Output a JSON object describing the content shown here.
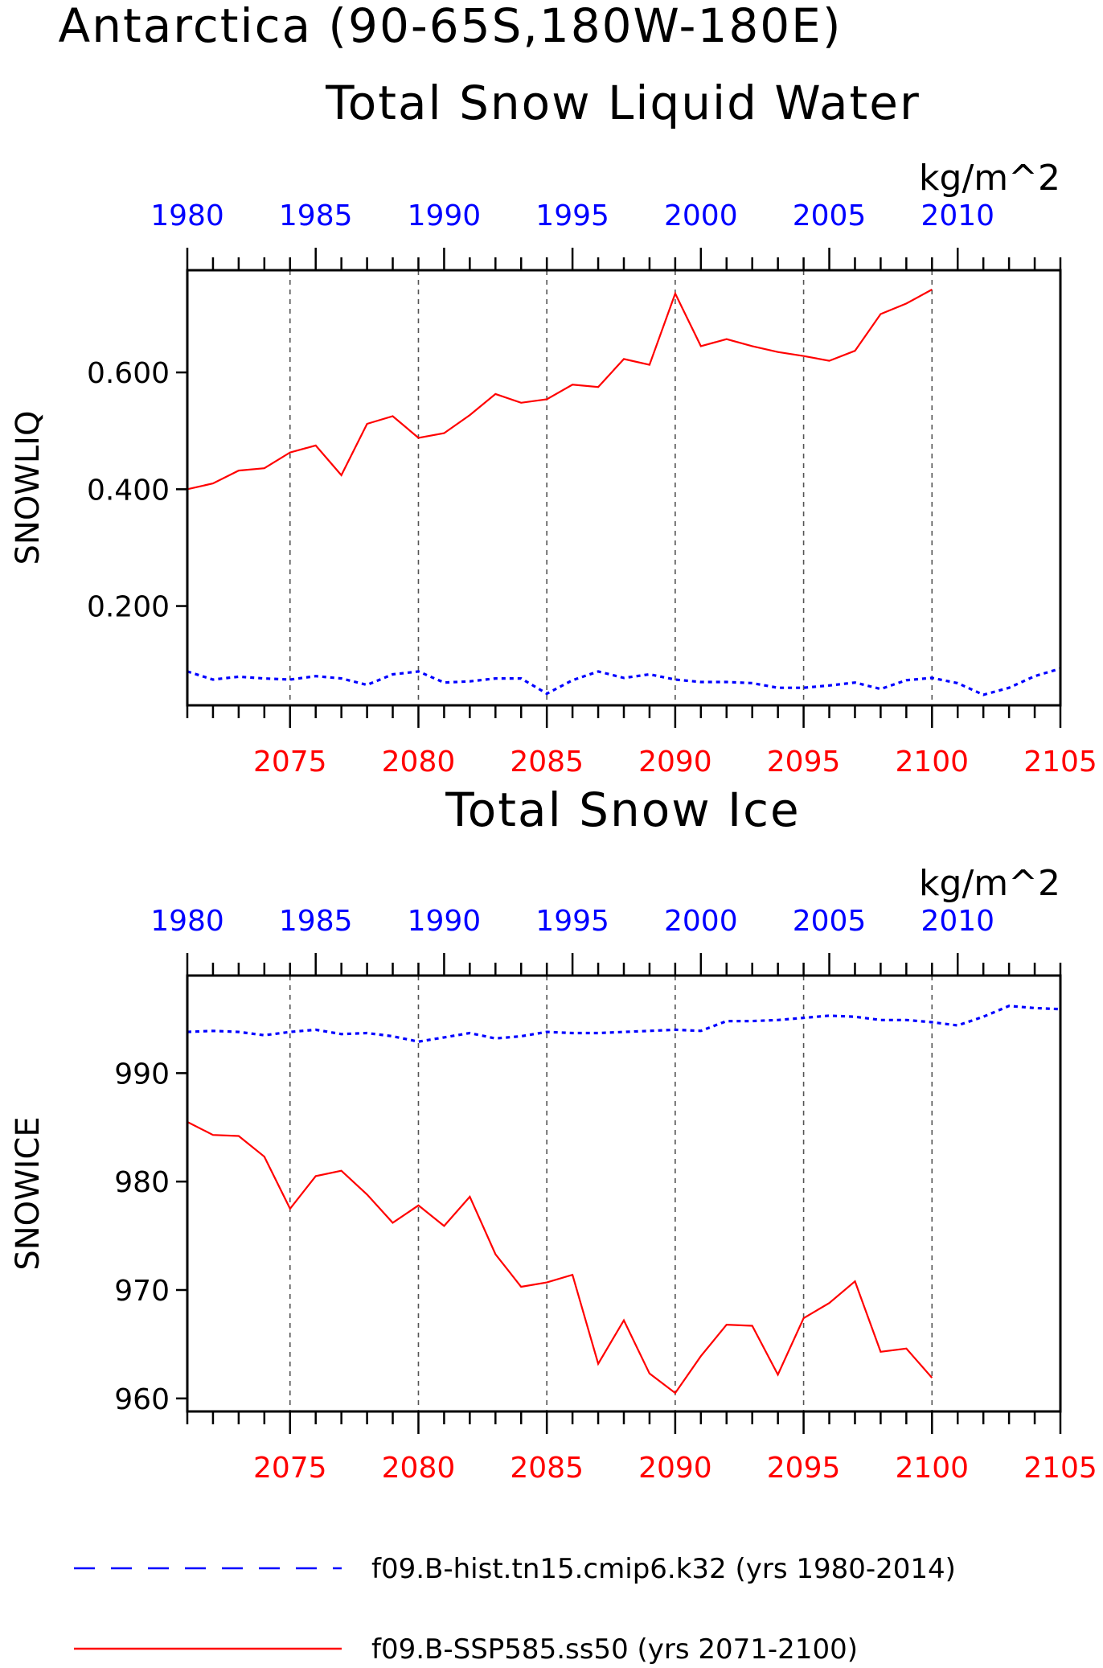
{
  "title_line1": "Antarctica (90-65S,180W-180E)",
  "legend": [
    {
      "label": "f09.B-hist.tn15.cmip6.k32 (yrs 1980-2014)",
      "color": "#0000ff",
      "style": "dashed"
    },
    {
      "label": "f09.B-SSP585.ss50 (yrs 2071-2100)",
      "color": "#ff0000",
      "style": "solid"
    }
  ],
  "chart_data": [
    {
      "type": "line",
      "title": "Total Snow Liquid Water",
      "ylabel": "SNOWLIQ",
      "units": "kg/m^2",
      "ylim": [
        0.03,
        0.775
      ],
      "y_ticks": [
        0.2,
        0.4,
        0.6
      ],
      "y_tick_labels": [
        "0.200",
        "0.400",
        "0.600"
      ],
      "top_axis": {
        "label_years": [
          1980,
          1985,
          1990,
          1995,
          2000,
          2005,
          2010
        ],
        "range": [
          1980,
          2014
        ]
      },
      "bottom_axis": {
        "label_years": [
          2075,
          2080,
          2085,
          2090,
          2095,
          2100,
          2105
        ],
        "range": [
          2071,
          2105
        ]
      },
      "series": [
        {
          "name": "f09.B-SSP585.ss50 (yrs 2071-2100)",
          "color": "#ff0000",
          "axis": "bottom",
          "x": [
            2071,
            2072,
            2073,
            2074,
            2075,
            2076,
            2077,
            2078,
            2079,
            2080,
            2081,
            2082,
            2083,
            2084,
            2085,
            2086,
            2087,
            2088,
            2089,
            2090,
            2091,
            2092,
            2093,
            2094,
            2095,
            2096,
            2097,
            2098,
            2099,
            2100
          ],
          "values": [
            0.4,
            0.41,
            0.432,
            0.436,
            0.463,
            0.475,
            0.424,
            0.512,
            0.525,
            0.488,
            0.496,
            0.527,
            0.563,
            0.548,
            0.554,
            0.579,
            0.575,
            0.623,
            0.613,
            0.735,
            0.645,
            0.657,
            0.645,
            0.635,
            0.628,
            0.62,
            0.637,
            0.7,
            0.718,
            0.742
          ]
        },
        {
          "name": "f09.B-hist.tn15.cmip6.k32 (yrs 1980-2014)",
          "color": "#0000ff",
          "axis": "top",
          "x": [
            1980,
            1981,
            1982,
            1983,
            1984,
            1985,
            1986,
            1987,
            1988,
            1989,
            1990,
            1991,
            1992,
            1993,
            1994,
            1995,
            1996,
            1997,
            1998,
            1999,
            2000,
            2001,
            2002,
            2003,
            2004,
            2005,
            2006,
            2007,
            2008,
            2009,
            2010,
            2011,
            2012,
            2013,
            2014
          ],
          "values": [
            0.088,
            0.074,
            0.079,
            0.076,
            0.074,
            0.08,
            0.076,
            0.065,
            0.083,
            0.088,
            0.069,
            0.071,
            0.076,
            0.076,
            0.05,
            0.073,
            0.088,
            0.077,
            0.083,
            0.074,
            0.07,
            0.07,
            0.068,
            0.06,
            0.06,
            0.064,
            0.069,
            0.058,
            0.073,
            0.077,
            0.068,
            0.048,
            0.06,
            0.08,
            0.093
          ]
        }
      ]
    },
    {
      "type": "line",
      "title": "Total Snow Ice",
      "ylabel": "SNOWICE",
      "units": "kg/m^2",
      "ylim": [
        958.8,
        999.0
      ],
      "y_ticks": [
        960,
        970,
        980,
        990
      ],
      "y_tick_labels": [
        "960",
        "970",
        "980",
        "990"
      ],
      "top_axis": {
        "label_years": [
          1980,
          1985,
          1990,
          1995,
          2000,
          2005,
          2010
        ],
        "range": [
          1980,
          2014
        ]
      },
      "bottom_axis": {
        "label_years": [
          2075,
          2080,
          2085,
          2090,
          2095,
          2100,
          2105
        ],
        "range": [
          2071,
          2105
        ]
      },
      "series": [
        {
          "name": "f09.B-SSP585.ss50 (yrs 2071-2100)",
          "color": "#ff0000",
          "axis": "bottom",
          "x": [
            2071,
            2072,
            2073,
            2074,
            2075,
            2076,
            2077,
            2078,
            2079,
            2080,
            2081,
            2082,
            2083,
            2084,
            2085,
            2086,
            2087,
            2088,
            2089,
            2090,
            2091,
            2092,
            2093,
            2094,
            2095,
            2096,
            2097,
            2098,
            2099,
            2100
          ],
          "values": [
            985.5,
            984.3,
            984.2,
            982.3,
            977.5,
            980.5,
            981.0,
            978.8,
            976.2,
            977.8,
            975.9,
            978.6,
            973.3,
            970.3,
            970.7,
            971.4,
            963.2,
            967.2,
            962.3,
            960.5,
            963.9,
            966.8,
            966.7,
            962.2,
            967.4,
            968.8,
            970.8,
            964.3,
            964.6,
            961.9
          ]
        },
        {
          "name": "f09.B-hist.tn15.cmip6.k32 (yrs 1980-2014)",
          "color": "#0000ff",
          "axis": "top",
          "x": [
            1980,
            1981,
            1982,
            1983,
            1984,
            1985,
            1986,
            1987,
            1988,
            1989,
            1990,
            1991,
            1992,
            1993,
            1994,
            1995,
            1996,
            1997,
            1998,
            1999,
            2000,
            2001,
            2002,
            2003,
            2004,
            2005,
            2006,
            2007,
            2008,
            2009,
            2010,
            2011,
            2012,
            2013,
            2014
          ],
          "values": [
            993.8,
            993.9,
            993.8,
            993.5,
            993.8,
            994.0,
            993.6,
            993.7,
            993.4,
            992.9,
            993.3,
            993.7,
            993.2,
            993.4,
            993.8,
            993.7,
            993.7,
            993.8,
            993.9,
            994.0,
            993.9,
            994.8,
            994.8,
            994.9,
            995.1,
            995.3,
            995.2,
            994.9,
            994.9,
            994.7,
            994.4,
            995.2,
            996.2,
            996.0,
            995.9
          ]
        }
      ]
    }
  ]
}
